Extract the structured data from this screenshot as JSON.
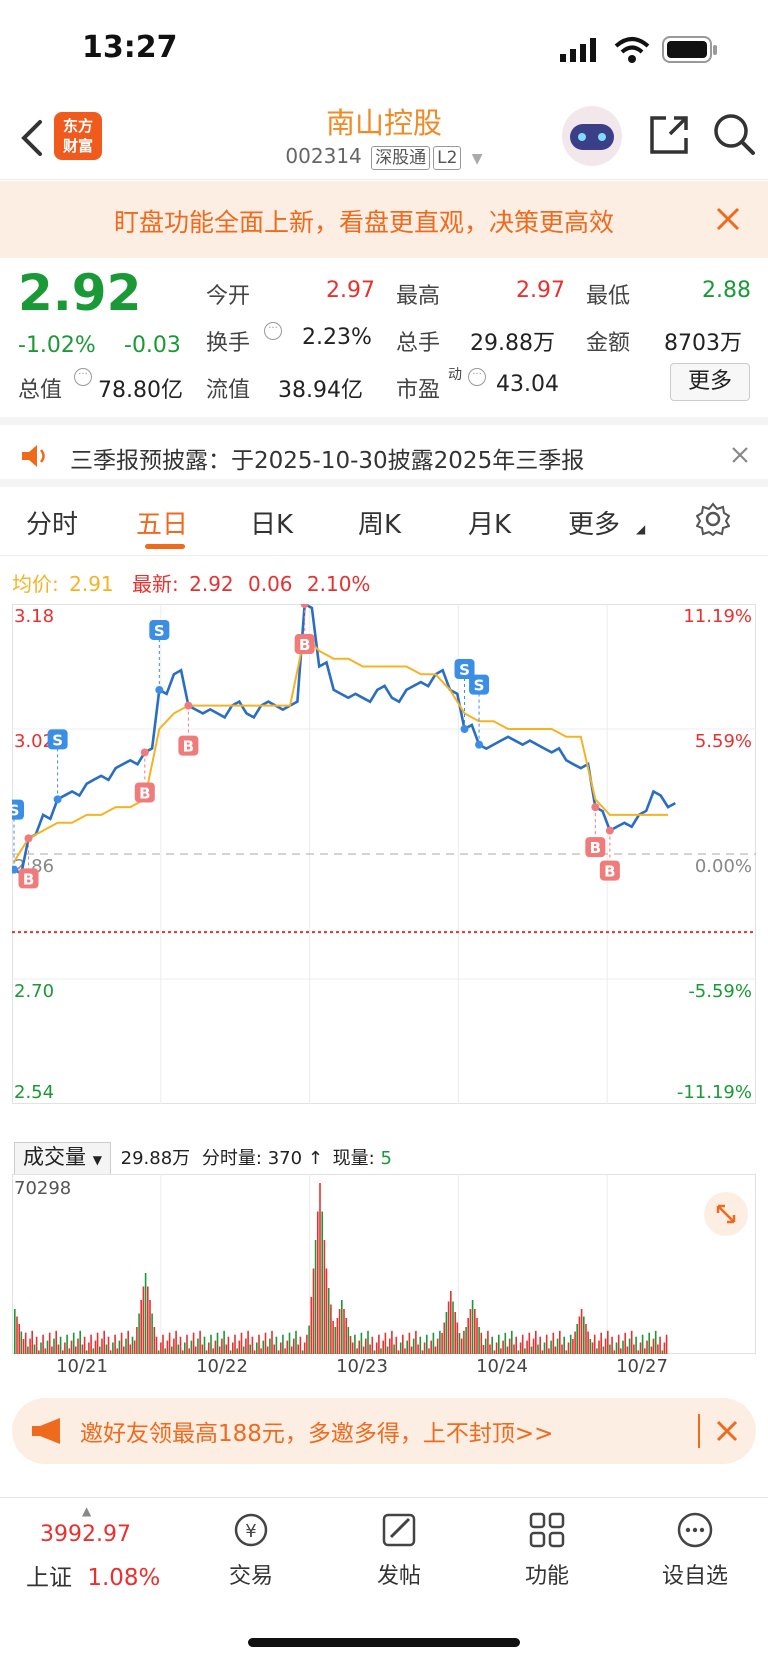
{
  "status_bar": {
    "time": "13:27"
  },
  "header": {
    "back": "‹",
    "logo": [
      "东方",
      "财富"
    ],
    "stock_name": "南山控股",
    "stock_code": "002314",
    "market_tag": "深股通",
    "level_tag": "L2"
  },
  "promo_banner": {
    "text": "盯盘功能全面上新，看盘更直观，决策更高效"
  },
  "quote": {
    "price": "2.92",
    "change_pct": "-1.02%",
    "change": "-0.03",
    "total_value_label": "总值",
    "total_value": "78.80亿",
    "fields": [
      {
        "label": "今开",
        "value": "2.97",
        "color": "#e8312f"
      },
      {
        "label": "最高",
        "value": "2.97",
        "color": "#e8312f"
      },
      {
        "label": "最低",
        "value": "2.88",
        "color": "#1a9a36"
      },
      {
        "label": "换手",
        "value": "2.23%",
        "color": "#222222"
      },
      {
        "label": "总手",
        "value": "29.88万",
        "color": "#222222"
      },
      {
        "label": "金额",
        "value": "8703万",
        "color": "#222222"
      },
      {
        "label": "流值",
        "value": "38.94亿",
        "color": "#222222"
      },
      {
        "label": "市盈",
        "value": "43.04",
        "color": "#222222",
        "sup": "动"
      }
    ],
    "more_button": "更多"
  },
  "notice": {
    "text": "三季报预披露：于2025-10-30披露2025年三季报"
  },
  "tabs": [
    "分时",
    "五日",
    "日K",
    "周K",
    "月K",
    "更多"
  ],
  "active_tab": "五日",
  "legend": {
    "avg_label": "均价:",
    "avg_value": "2.91",
    "last_label": "最新:",
    "last_value": "2.92",
    "last_change": "0.06",
    "last_pct": "2.10%"
  },
  "volume_bar": {
    "select_label": "成交量",
    "total": "29.88万",
    "tick_label": "分时量:",
    "tick_value": "370",
    "arrow": "↑",
    "now_label": "现量:",
    "now_value": "5"
  },
  "chart_data": {
    "type": "line",
    "title": "",
    "x_labels": [
      "10/21",
      "10/22",
      "10/23",
      "10/24",
      "10/27"
    ],
    "y_left_ticks": [
      "3.18",
      "3.02",
      "2.86",
      "2.70",
      "2.54"
    ],
    "y_right_ticks": [
      "11.19%",
      "5.59%",
      "0.00%",
      "-5.59%",
      "-11.19%"
    ],
    "ylim": [
      2.54,
      3.18
    ],
    "prev_close": 2.86,
    "series": [
      {
        "name": "最新",
        "color": "#2a6dc4",
        "values": [
          2.84,
          2.88,
          2.91,
          2.93,
          2.94,
          2.95,
          2.96,
          2.97,
          2.98,
          2.99,
          3.07,
          3.09,
          3.05,
          3.04,
          3.04,
          3.05,
          3.04,
          3.05,
          3.05,
          3.05,
          3.18,
          3.1,
          3.07,
          3.06,
          3.06,
          3.07,
          3.06,
          3.07,
          3.08,
          3.09,
          3.07,
          3.02,
          3.0,
          3.0,
          3.01,
          3.0,
          3.0,
          2.99,
          2.98,
          2.97,
          2.92,
          2.89,
          2.9,
          2.91,
          2.94,
          2.92
        ],
        "x_segments": [
          0,
          0.0,
          0.02,
          0.04,
          0.06,
          0.08,
          0.1,
          0.12,
          0.14,
          0.16,
          0.18,
          0.2,
          0.22,
          0.24,
          0.26,
          0.28,
          0.3,
          0.32,
          0.34,
          0.36,
          0.4,
          0.42,
          0.44,
          0.46,
          0.48,
          0.5,
          0.52,
          0.54,
          0.56,
          0.58,
          0.6,
          0.62,
          0.64,
          0.66,
          0.68,
          0.7,
          0.72,
          0.74,
          0.76,
          0.78,
          0.8,
          0.82,
          0.84,
          0.86,
          0.88,
          0.9
        ]
      },
      {
        "name": "均价",
        "color": "#f5b324",
        "values": [
          2.85,
          2.88,
          2.89,
          2.9,
          2.9,
          2.91,
          2.91,
          2.92,
          2.92,
          2.93,
          3.02,
          3.04,
          3.05,
          3.05,
          3.05,
          3.05,
          3.05,
          3.05,
          3.05,
          3.05,
          3.14,
          3.12,
          3.11,
          3.11,
          3.1,
          3.1,
          3.1,
          3.1,
          3.09,
          3.09,
          3.07,
          3.04,
          3.03,
          3.03,
          3.02,
          3.02,
          3.02,
          3.02,
          3.01,
          3.01,
          2.93,
          2.91,
          2.91,
          2.91,
          2.91,
          2.91
        ]
      }
    ],
    "volume_max": "70298"
  },
  "invite": {
    "text": "邀好友领最高188元，多邀多得，上不封顶>>"
  },
  "bottom_bar": {
    "index_value": "3992.97",
    "index_name": "上证",
    "index_pct": "1.08%",
    "items": [
      "交易",
      "发帖",
      "功能",
      "设自选"
    ]
  },
  "colors": {
    "up": "#e8312f",
    "down": "#1a9a36",
    "accent": "#f06a1d",
    "price_line": "#2a6dc4",
    "avg_line": "#f5b324"
  }
}
